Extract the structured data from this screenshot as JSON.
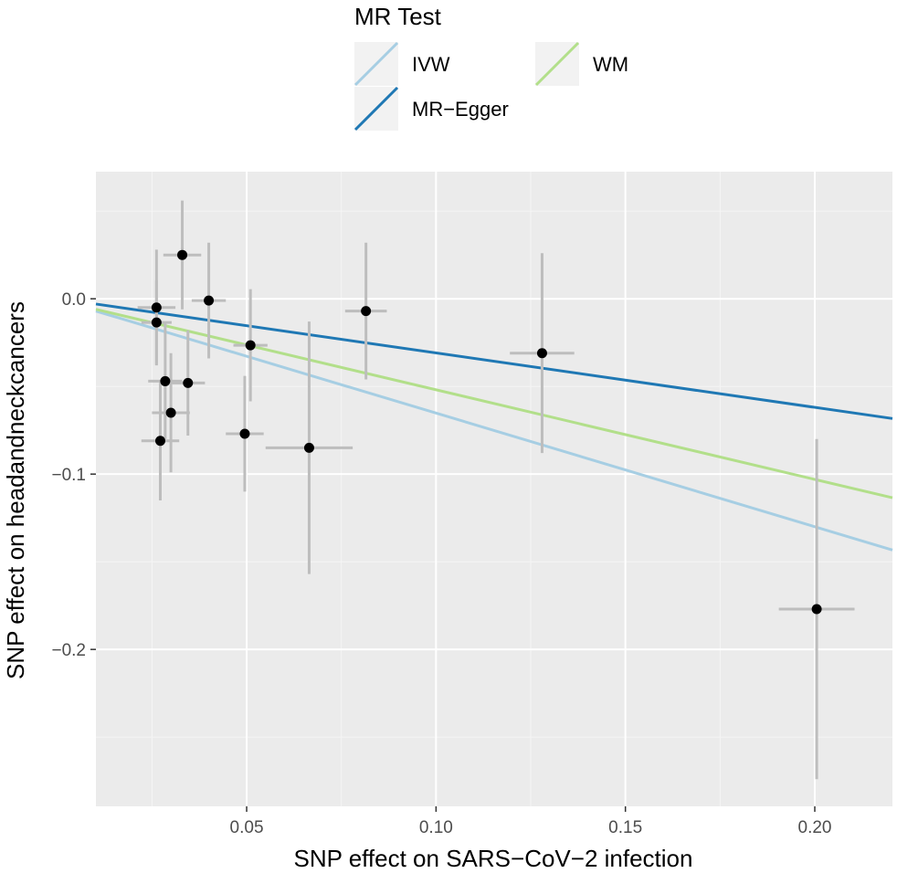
{
  "chart_data": {
    "type": "scatter",
    "title": "",
    "xlabel": "SNP effect on SARS−CoV−2 infection",
    "ylabel": "SNP effect on headandneckcancers",
    "xlim": [
      0.0102,
      0.2205
    ],
    "ylim": [
      -0.2895,
      0.0725
    ],
    "x_ticks": [
      0.05,
      0.1,
      0.15,
      0.2
    ],
    "x_tick_labels": [
      "0.05",
      "0.10",
      "0.15",
      "0.20"
    ],
    "y_ticks": [
      0.0,
      -0.1,
      -0.2
    ],
    "y_tick_labels": [
      "0.0",
      "−0.1",
      "−0.2"
    ],
    "grid": true,
    "points": [
      {
        "x": 0.0262,
        "y": -0.005,
        "xerr": 0.005,
        "yerr": 0.033
      },
      {
        "x": 0.0262,
        "y": -0.0135,
        "xerr": 0.004,
        "yerr": 0.024
      },
      {
        "x": 0.033,
        "y": 0.025,
        "xerr": 0.005,
        "yerr": 0.031
      },
      {
        "x": 0.04,
        "y": -0.001,
        "xerr": 0.0045,
        "yerr": 0.033
      },
      {
        "x": 0.0285,
        "y": -0.047,
        "xerr": 0.0045,
        "yerr": 0.033
      },
      {
        "x": 0.0345,
        "y": -0.048,
        "xerr": 0.0045,
        "yerr": 0.03
      },
      {
        "x": 0.03,
        "y": -0.065,
        "xerr": 0.005,
        "yerr": 0.034
      },
      {
        "x": 0.0272,
        "y": -0.081,
        "xerr": 0.005,
        "yerr": 0.034
      },
      {
        "x": 0.051,
        "y": -0.0265,
        "xerr": 0.0045,
        "yerr": 0.032
      },
      {
        "x": 0.0495,
        "y": -0.077,
        "xerr": 0.005,
        "yerr": 0.033
      },
      {
        "x": 0.0665,
        "y": -0.085,
        "xerr": 0.0115,
        "yerr": 0.072
      },
      {
        "x": 0.0815,
        "y": -0.007,
        "xerr": 0.0055,
        "yerr": 0.039
      },
      {
        "x": 0.128,
        "y": -0.031,
        "xerr": 0.0085,
        "yerr": 0.057
      },
      {
        "x": 0.2005,
        "y": -0.177,
        "xerr": 0.01,
        "yerr": 0.097
      }
    ],
    "lines": [
      {
        "name": "IVW",
        "color": "#a6cee3",
        "y0": -0.007,
        "y1": -0.1433
      },
      {
        "name": "MR−Egger",
        "color": "#1f78b4",
        "y0": -0.003,
        "y1": -0.0683
      },
      {
        "name": "WM",
        "color": "#b2df8a",
        "y0": -0.006,
        "y1": -0.1135
      }
    ],
    "legend": {
      "title": "MR Test",
      "position": "top",
      "entries": [
        {
          "label": "IVW",
          "color": "#a6cee3"
        },
        {
          "label": "WM",
          "color": "#b2df8a"
        },
        {
          "label": "MR−Egger",
          "color": "#1f78b4"
        }
      ]
    },
    "colors": {
      "panel": "#ebebeb",
      "grid_major": "#ffffff",
      "grid_minor": "#f5f5f5",
      "point": "#000000",
      "errorbar": "#bdbdbd",
      "legend_key": "#f2f2f2",
      "tick": "#333333"
    }
  }
}
